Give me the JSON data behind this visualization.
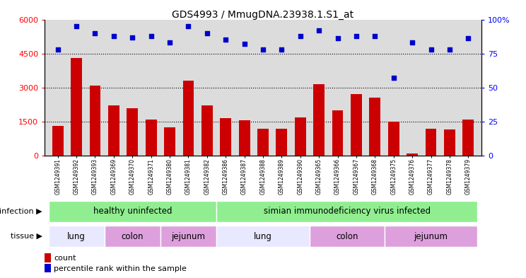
{
  "title": "GDS4993 / MmugDNA.23938.1.S1_at",
  "samples": [
    "GSM1249391",
    "GSM1249392",
    "GSM1249393",
    "GSM1249369",
    "GSM1249370",
    "GSM1249371",
    "GSM1249380",
    "GSM1249381",
    "GSM1249382",
    "GSM1249386",
    "GSM1249387",
    "GSM1249388",
    "GSM1249389",
    "GSM1249390",
    "GSM1249365",
    "GSM1249366",
    "GSM1249367",
    "GSM1249368",
    "GSM1249375",
    "GSM1249376",
    "GSM1249377",
    "GSM1249378",
    "GSM1249379"
  ],
  "counts": [
    1300,
    4300,
    3100,
    2200,
    2100,
    1600,
    1250,
    3300,
    2200,
    1650,
    1550,
    1200,
    1200,
    1700,
    3150,
    2000,
    2700,
    2550,
    1500,
    100,
    1200,
    1150,
    1600
  ],
  "percentiles": [
    78,
    95,
    90,
    88,
    87,
    88,
    83,
    95,
    90,
    85,
    82,
    78,
    78,
    88,
    92,
    86,
    88,
    88,
    57,
    83,
    78,
    78,
    86
  ],
  "bar_color": "#CC0000",
  "scatter_color": "#0000CC",
  "ylim_left": [
    0,
    6000
  ],
  "ylim_right": [
    0,
    100
  ],
  "yticks_left": [
    0,
    1500,
    3000,
    4500,
    6000
  ],
  "yticks_right": [
    0,
    25,
    50,
    75,
    100
  ],
  "plot_bg": "#DCDCDC",
  "healthy_color": "#90EE90",
  "infected_color": "#90EE90",
  "lung_color": "#E8E8FF",
  "colon_color": "#DDA0DD",
  "jejunum_color": "#DDA0DD",
  "tissue_groups": [
    {
      "label": "lung",
      "start": 0,
      "end": 2
    },
    {
      "label": "colon",
      "start": 3,
      "end": 5
    },
    {
      "label": "jejunum",
      "start": 6,
      "end": 8
    },
    {
      "label": "lung",
      "start": 9,
      "end": 13
    },
    {
      "label": "colon",
      "start": 14,
      "end": 17
    },
    {
      "label": "jejunum",
      "start": 18,
      "end": 22
    }
  ]
}
